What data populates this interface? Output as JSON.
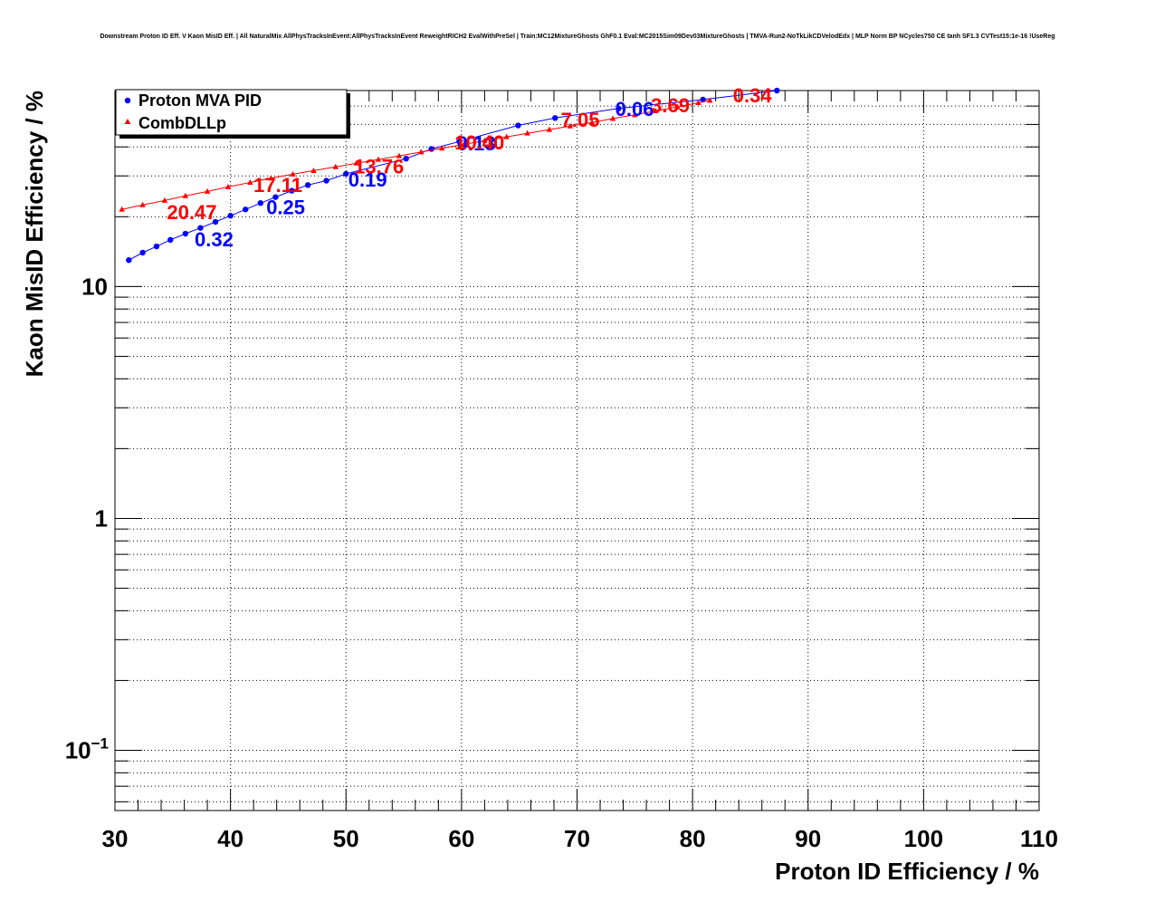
{
  "chart_data": {
    "type": "scatter",
    "title": "Downstream Proton ID Eff. V Kaon MisID Eff. | All NaturalMix AllPhysTracksInEvent:AllPhysTracksInEvent ReweightRICH2 EvalWithPreSel | Train:MC12MixtureGhosts GhF0.1 Eval:MC2015Sim09Dev03MixtureGhosts | TMVA-Run2-NoTkLikCDVelodEdx | MLP Norm BP NCycles750 CE tanh SF1.3 CVTest15:1e-16 !UseReg",
    "xlabel": "Proton ID Efficiency / %",
    "ylabel": "Kaon MisID Efficiency / %",
    "xlim": [
      30,
      110
    ],
    "ylim": [
      0.055,
      70
    ],
    "yscale": "log",
    "grid": true,
    "legend_position": "top-left",
    "x_tick_labels": [
      "30",
      "40",
      "50",
      "60",
      "70",
      "80",
      "90",
      "100",
      "110"
    ],
    "y_tick_labels": [
      {
        "value": 10,
        "label": "10"
      },
      {
        "value": 1,
        "label": "1"
      },
      {
        "value": 0.1,
        "base": "10",
        "exp": "−1"
      }
    ],
    "series": [
      {
        "name": "Proton MVA PID",
        "color": "#0000ff",
        "marker": "circle",
        "x": [
          31.2,
          32.4,
          33.6,
          34.8,
          36.1,
          37.4,
          38.7,
          40.0,
          41.3,
          42.6,
          43.9,
          45.3,
          46.7,
          48.3,
          50.0,
          55.2,
          57.4,
          59.8,
          64.9,
          68.1,
          73.6,
          80.9,
          87.3
        ],
        "y": [
          13.0,
          14.0,
          14.9,
          15.9,
          16.9,
          17.9,
          19.0,
          20.2,
          21.5,
          22.9,
          24.3,
          25.9,
          27.4,
          28.6,
          30.6,
          35.6,
          39.2,
          42.2,
          49.5,
          53.3,
          58.6,
          64.0,
          70.0
        ],
        "annotations": [
          {
            "x": 36.9,
            "y": 16.0,
            "text": "0.32"
          },
          {
            "x": 43.1,
            "y": 22.0,
            "text": "0.25"
          },
          {
            "x": 50.2,
            "y": 29.0,
            "text": "0.19"
          },
          {
            "x": 59.6,
            "y": 41.5,
            "text": "0.13"
          },
          {
            "x": 73.3,
            "y": 58.5,
            "text": "0.06"
          }
        ]
      },
      {
        "name": "CombDLLp",
        "color": "#ff0000",
        "marker": "triangle",
        "x": [
          30.6,
          32.4,
          34.3,
          36.1,
          38.0,
          39.8,
          41.7,
          43.5,
          45.4,
          47.2,
          49.1,
          50.9,
          52.8,
          54.6,
          56.5,
          58.3,
          60.2,
          62.0,
          63.9,
          65.7,
          67.6,
          69.4,
          71.3,
          73.1,
          75.0,
          76.8,
          78.7,
          80.5,
          81.5
        ],
        "y": [
          21.5,
          22.5,
          23.5,
          24.6,
          25.7,
          26.9,
          28.1,
          29.3,
          30.5,
          31.6,
          32.8,
          34.0,
          35.3,
          36.6,
          38.0,
          39.5,
          41.0,
          42.6,
          44.2,
          45.8,
          47.5,
          49.2,
          51.0,
          53.0,
          55.0,
          57.2,
          59.5,
          62.0,
          63.5
        ],
        "annotations": [
          {
            "x": 34.5,
            "y": 21.0,
            "text": "20.47"
          },
          {
            "x": 42.0,
            "y": 27.5,
            "text": "17.11"
          },
          {
            "x": 50.7,
            "y": 33.0,
            "text": "13.76"
          },
          {
            "x": 59.4,
            "y": 42.0,
            "text": "10.40"
          },
          {
            "x": 68.6,
            "y": 52.5,
            "text": "7.05"
          },
          {
            "x": 76.4,
            "y": 60.5,
            "text": "3.69"
          },
          {
            "x": 83.5,
            "y": 66.8,
            "text": "0.34"
          }
        ]
      }
    ]
  }
}
